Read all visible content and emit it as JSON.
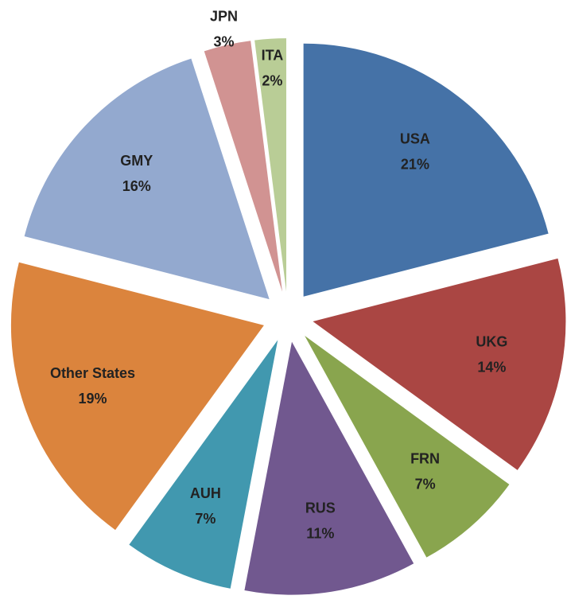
{
  "chart_data": {
    "type": "pie",
    "categories": [
      "USA",
      "UKG",
      "FRN",
      "RUS",
      "AUH",
      "Other States",
      "GMY",
      "JPN",
      "ITA"
    ],
    "values": [
      21,
      14,
      7,
      11,
      7,
      19,
      16,
      3,
      2
    ],
    "value_labels": [
      "21%",
      "14%",
      "7%",
      "11%",
      "7%",
      "19%",
      "16%",
      "3%",
      "2%"
    ],
    "colors": [
      "#4572a7",
      "#aa4643",
      "#89a54e",
      "#71588f",
      "#4198af",
      "#db843d",
      "#93a9cf",
      "#d19392",
      "#b9cd96"
    ]
  }
}
